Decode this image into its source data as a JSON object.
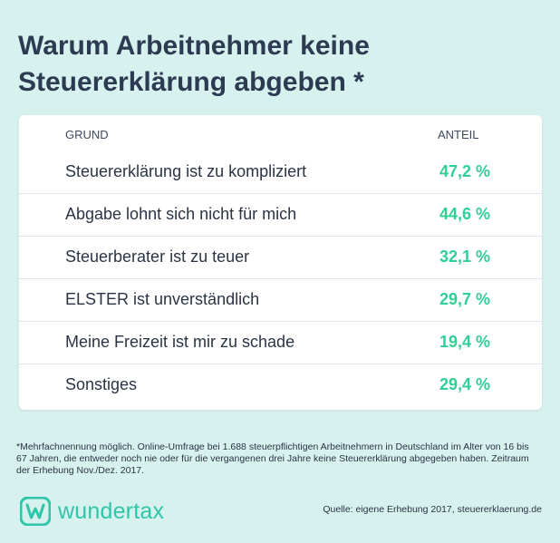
{
  "title": "Warum Arbeitnehmer keine Steuererklärung abgeben *",
  "colors": {
    "background": "#d7f1ee",
    "value": "#2fcf96",
    "brand": "#2fc5a9",
    "text": "#2b3445"
  },
  "chart_data": {
    "type": "table",
    "title": "Warum Arbeitnehmer keine Steuererklärung abgeben *",
    "columns": [
      "GRUND",
      "ANTEIL"
    ],
    "rows": [
      {
        "label": "Steuererklärung ist zu kompliziert",
        "value": 47.2,
        "display": "47,2 %"
      },
      {
        "label": "Abgabe lohnt sich nicht für mich",
        "value": 44.6,
        "display": "44,6 %"
      },
      {
        "label": "Steuerberater ist zu teuer",
        "value": 32.1,
        "display": "32,1 %"
      },
      {
        "label": "ELSTER ist unverständlich",
        "value": 29.7,
        "display": "29,7 %"
      },
      {
        "label": "Meine Freizeit ist mir zu schade",
        "value": 19.4,
        "display": "19,4 %"
      },
      {
        "label": "Sonstiges",
        "value": 29.4,
        "display": "29,4 %"
      }
    ]
  },
  "footnote": "*Mehrfachnennung möglich. Online-Umfrage bei 1.688 steuerpflichtigen Arbeitnehmern in Deutschland im Alter von 16 bis 67 Jahren, die entweder noch nie oder für die vergangenen drei Jahre keine Steuererklärung abgegeben haben. Zeitraum der Erhebung Nov./Dez. 2017.",
  "brand": {
    "name": "wundertax",
    "icon": "wundertax-logo-icon"
  },
  "source": "Quelle: eigene Erhebung 2017, steuererklaerung.de"
}
